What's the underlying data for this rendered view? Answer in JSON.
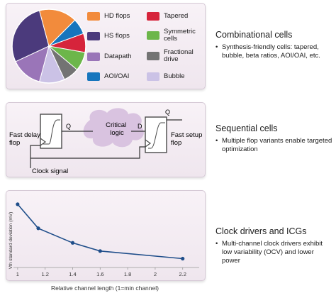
{
  "legend": [
    {
      "label": "HD flops",
      "color": "#f28b3c"
    },
    {
      "label": "Tapered",
      "color": "#d6243b"
    },
    {
      "label": "HS flops",
      "color": "#4b3a7c"
    },
    {
      "label": "Symmetric cells",
      "color": "#6cb64a"
    },
    {
      "label": "Datapath",
      "color": "#9a75b8"
    },
    {
      "label": "Fractional drive",
      "color": "#737373"
    },
    {
      "label": "AOI/OAI",
      "color": "#1675bd"
    },
    {
      "label": "Bubble",
      "color": "#cbc2e6"
    }
  ],
  "pie": {
    "colors": {
      "purple": "#4b3a7c",
      "orange": "#f28b3c",
      "blue": "#1675bd",
      "red": "#d6243b",
      "green": "#6cb64a",
      "gray": "#737373",
      "lavender": "#cbc2e6",
      "lightpurple": "#9a75b8"
    }
  },
  "sequential": {
    "fast_delay": "Fast delay flop",
    "critical": "Critical logic",
    "fast_setup": "Fast setup flop",
    "q_left": "Q",
    "q_right": "Q",
    "d_right": "D",
    "clock": "Clock signal"
  },
  "sections": {
    "combinational": {
      "title": "Combinational cells",
      "bullet": "Synthesis-friendly cells: tapered, bubble, beta ratios, AOI/OAI, etc."
    },
    "sequential": {
      "title": "Sequential cells",
      "bullet": "Multiple flop variants enable targeted optimization"
    },
    "clock": {
      "title": "Clock drivers and ICGs",
      "bullet": "Multi-channel clock drivers exhibit low variability (OCV) and lower power"
    }
  },
  "chart_data": {
    "type": "line",
    "x": [
      1.0,
      1.15,
      1.4,
      1.6,
      2.2
    ],
    "y": [
      10.0,
      6.2,
      3.9,
      2.6,
      1.4
    ],
    "xlabel": "Relative channel length (1=min channel)",
    "ylabel": "Vth standard deviation (mV)",
    "xticks": [
      "1",
      "1.2",
      "1.4",
      "1.6",
      "1.8",
      "2",
      "2.2"
    ],
    "xlim": [
      0.98,
      2.32
    ],
    "ylim": [
      0,
      11
    ],
    "color": "#1f4e8a"
  }
}
